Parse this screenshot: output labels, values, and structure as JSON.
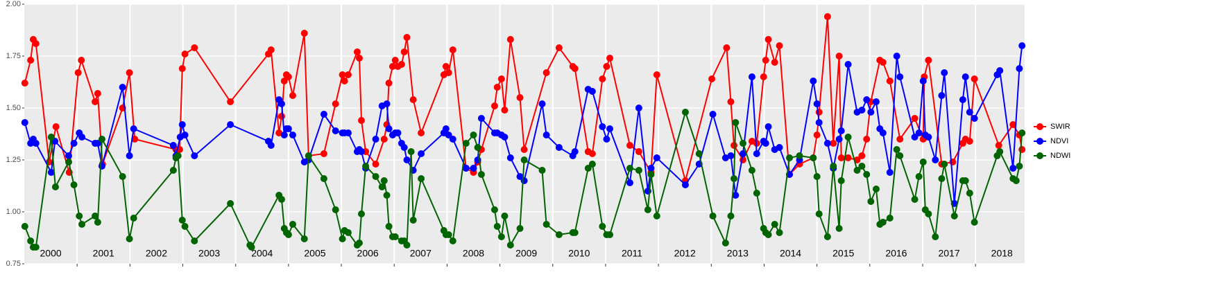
{
  "chart_data": {
    "type": "line",
    "ylim": [
      0.75,
      2.0
    ],
    "yticks": [
      {
        "value": 0.75,
        "label": "0.75"
      },
      {
        "value": 1.0,
        "label": "1.00"
      },
      {
        "value": 1.25,
        "label": "1.25"
      },
      {
        "value": 1.5,
        "label": "1.50"
      },
      {
        "value": 1.75,
        "label": "1.75"
      },
      {
        "value": 2.0,
        "label": "2.00"
      }
    ],
    "xlim": [
      2000,
      2018.93
    ],
    "xticks": [
      {
        "value": 2000.5,
        "label": "2000"
      },
      {
        "value": 2001.5,
        "label": "2001"
      },
      {
        "value": 2002.5,
        "label": "2002"
      },
      {
        "value": 2003.5,
        "label": "2003"
      },
      {
        "value": 2004.5,
        "label": "2004"
      },
      {
        "value": 2005.5,
        "label": "2005"
      },
      {
        "value": 2006.5,
        "label": "2006"
      },
      {
        "value": 2007.5,
        "label": "2007"
      },
      {
        "value": 2008.5,
        "label": "2008"
      },
      {
        "value": 2009.5,
        "label": "2009"
      },
      {
        "value": 2010.5,
        "label": "2010"
      },
      {
        "value": 2011.5,
        "label": "2011"
      },
      {
        "value": 2012.5,
        "label": "2012"
      },
      {
        "value": 2013.5,
        "label": "2013"
      },
      {
        "value": 2014.5,
        "label": "2014"
      },
      {
        "value": 2015.5,
        "label": "2015"
      },
      {
        "value": 2016.5,
        "label": "2016"
      },
      {
        "value": 2017.5,
        "label": "2017"
      },
      {
        "value": 2018.5,
        "label": "2018"
      }
    ],
    "xgrid": [
      2001,
      2002,
      2003,
      2004,
      2005,
      2006,
      2007,
      2008,
      2009,
      2010,
      2011,
      2012,
      2013,
      2014,
      2015,
      2016,
      2017,
      2018
    ],
    "grid": true,
    "legend": "right",
    "series": [
      {
        "name": "SWIR",
        "color": "#ff0000",
        "x": [
          2000.01,
          2000.12,
          2000.17,
          2000.22,
          2000.47,
          2000.6,
          2000.85,
          2001.02,
          2001.08,
          2001.34,
          2001.39,
          2001.48,
          2001.86,
          2001.99,
          2002.09,
          2002.87,
          2002.94,
          2002.99,
          2003.04,
          2003.22,
          2003.9,
          2004.62,
          2004.67,
          2004.82,
          2004.87,
          2004.92,
          2004.96,
          2005,
          2005.08,
          2005.3,
          2005.38,
          2005.67,
          2005.89,
          2006.02,
          2006.06,
          2006.13,
          2006.3,
          2006.34,
          2006.38,
          2006.46,
          2006.65,
          2006.81,
          2006.86,
          2006.9,
          2006.97,
          2007.02,
          2007.07,
          2007.14,
          2007.19,
          2007.24,
          2007.36,
          2007.51,
          2007.94,
          2007.98,
          2008.03,
          2008.11,
          2008.36,
          2008.5,
          2008.58,
          2008.65,
          2008.9,
          2008.95,
          2009.03,
          2009.09,
          2009.2,
          2009.38,
          2009.46,
          2009.88,
          2010.12,
          2010.38,
          2010.42,
          2010.67,
          2010.75,
          2010.94,
          2011.02,
          2011.08,
          2011.46,
          2011.63,
          2011.86,
          2011.97,
          2012.51,
          2013.01,
          2013.29,
          2013.37,
          2013.43,
          2013.6,
          2013.77,
          2013.86,
          2013.99,
          2014.03,
          2014.08,
          2014.2,
          2014.29,
          2014.48,
          2014.67,
          2014.93,
          2015,
          2015.04,
          2015.2,
          2015.31,
          2015.42,
          2015.46,
          2015.59,
          2015.76,
          2015.85,
          2015.94,
          2016.02,
          2016.19,
          2016.25,
          2016.38,
          2016.57,
          2016.85,
          2017.01,
          2017.03,
          2017.11,
          2017.36,
          2017.57,
          2017.76,
          2017.81,
          2017.89,
          2017.98,
          2018.44,
          2018.71,
          2018.83,
          2018.88
        ],
        "values": [
          1.62,
          1.73,
          1.83,
          1.81,
          1.24,
          1.41,
          1.19,
          1.67,
          1.73,
          1.53,
          1.57,
          1.23,
          1.5,
          1.67,
          1.35,
          1.3,
          1.3,
          1.69,
          1.76,
          1.79,
          1.53,
          1.76,
          1.78,
          1.38,
          1.46,
          1.63,
          1.66,
          1.65,
          1.56,
          1.86,
          1.27,
          1.28,
          1.52,
          1.66,
          1.63,
          1.66,
          1.77,
          1.74,
          1.44,
          1.29,
          1.23,
          1.35,
          1.42,
          1.62,
          1.7,
          1.73,
          1.7,
          1.71,
          1.77,
          1.84,
          1.54,
          1.38,
          1.66,
          1.7,
          1.67,
          1.78,
          1.21,
          1.19,
          1.24,
          1.3,
          1.51,
          1.6,
          1.64,
          1.49,
          1.83,
          1.55,
          1.3,
          1.67,
          1.79,
          1.7,
          1.69,
          1.29,
          1.28,
          1.64,
          1.7,
          1.74,
          1.32,
          1.29,
          1.19,
          1.66,
          1.15,
          1.64,
          1.79,
          1.53,
          1.32,
          1.25,
          1.34,
          1.33,
          1.65,
          1.73,
          1.83,
          1.72,
          1.8,
          1.18,
          1.23,
          1.26,
          1.37,
          1.48,
          1.94,
          1.33,
          1.75,
          1.26,
          1.26,
          1.25,
          1.27,
          1.35,
          1.53,
          1.73,
          1.72,
          1.63,
          1.35,
          1.45,
          1.35,
          1.65,
          1.73,
          1.23,
          1.24,
          1.33,
          1.35,
          1.34,
          1.64,
          1.32,
          1.42,
          1.37,
          1.3
        ]
      },
      {
        "name": "NDVI",
        "color": "#0000ff",
        "x": [
          2000.01,
          2000.12,
          2000.17,
          2000.22,
          2000.51,
          2000.58,
          2000.84,
          2000.94,
          2001.04,
          2001.09,
          2001.34,
          2001.39,
          2001.47,
          2001.86,
          2001.99,
          2002.07,
          2002.82,
          2002.87,
          2002.95,
          2002.99,
          2003.04,
          2003.22,
          2003.9,
          2004.62,
          2004.67,
          2004.82,
          2004.87,
          2004.92,
          2004.96,
          2005,
          2005.08,
          2005.3,
          2005.38,
          2005.67,
          2005.89,
          2006.02,
          2006.06,
          2006.13,
          2006.3,
          2006.34,
          2006.38,
          2006.46,
          2006.65,
          2006.77,
          2006.86,
          2006.9,
          2006.97,
          2007.02,
          2007.07,
          2007.14,
          2007.19,
          2007.24,
          2007.36,
          2007.51,
          2007.94,
          2007.98,
          2008.03,
          2008.11,
          2008.36,
          2008.5,
          2008.58,
          2008.65,
          2008.9,
          2008.95,
          2009.03,
          2009.09,
          2009.2,
          2009.38,
          2009.46,
          2009.8,
          2009.88,
          2010.12,
          2010.38,
          2010.42,
          2010.67,
          2010.75,
          2010.94,
          2011.02,
          2011.08,
          2011.46,
          2011.63,
          2011.8,
          2011.86,
          2011.97,
          2012.51,
          2012.77,
          2013.03,
          2013.27,
          2013.37,
          2013.46,
          2013.6,
          2013.77,
          2013.86,
          2013.99,
          2014.03,
          2014.08,
          2014.2,
          2014.29,
          2014.48,
          2014.67,
          2014.93,
          2015,
          2015.04,
          2015.2,
          2015.31,
          2015.42,
          2015.46,
          2015.59,
          2015.76,
          2015.85,
          2015.94,
          2016.02,
          2016.12,
          2016.19,
          2016.25,
          2016.38,
          2016.51,
          2016.57,
          2016.85,
          2016.93,
          2017.01,
          2017.05,
          2017.11,
          2017.24,
          2017.36,
          2017.41,
          2017.6,
          2017.76,
          2017.81,
          2017.89,
          2017.98,
          2018.41,
          2018.46,
          2018.71,
          2018.83,
          2018.88
        ],
        "values": [
          1.43,
          1.33,
          1.35,
          1.33,
          1.19,
          1.34,
          1.27,
          1.33,
          1.38,
          1.36,
          1.33,
          1.33,
          1.22,
          1.6,
          1.27,
          1.4,
          1.32,
          1.27,
          1.36,
          1.42,
          1.37,
          1.27,
          1.42,
          1.34,
          1.32,
          1.54,
          1.52,
          1.37,
          1.4,
          1.4,
          1.37,
          1.24,
          1.25,
          1.47,
          1.39,
          1.38,
          1.38,
          1.38,
          1.29,
          1.3,
          1.29,
          1.21,
          1.35,
          1.51,
          1.52,
          1.4,
          1.37,
          1.38,
          1.38,
          1.33,
          1.31,
          1.25,
          1.2,
          1.28,
          1.38,
          1.4,
          1.37,
          1.35,
          1.21,
          1.21,
          1.25,
          1.45,
          1.38,
          1.38,
          1.37,
          1.36,
          1.26,
          1.17,
          1.15,
          1.52,
          1.37,
          1.31,
          1.27,
          1.29,
          1.59,
          1.58,
          1.41,
          1.35,
          1.4,
          1.14,
          1.5,
          1.1,
          1.21,
          1.26,
          1.13,
          1.23,
          1.47,
          1.26,
          1.27,
          1.08,
          1.28,
          1.65,
          1.28,
          1.34,
          1.33,
          1.41,
          1.3,
          1.31,
          1.18,
          1.25,
          1.63,
          1.52,
          1.43,
          1.33,
          1.21,
          1.35,
          1.39,
          1.71,
          1.48,
          1.49,
          1.54,
          1.48,
          1.53,
          1.4,
          1.38,
          1.19,
          1.75,
          1.65,
          1.36,
          1.38,
          1.63,
          1.37,
          1.36,
          1.25,
          1.56,
          1.67,
          1.04,
          1.54,
          1.65,
          1.48,
          1.45,
          1.66,
          1.68,
          1.21,
          1.69,
          1.8
        ]
      },
      {
        "name": "NDWI",
        "color": "#006400",
        "x": [
          2000.01,
          2000.12,
          2000.17,
          2000.22,
          2000.51,
          2000.59,
          2000.84,
          2000.94,
          2001.04,
          2001.09,
          2001.34,
          2001.39,
          2001.47,
          2001.86,
          2001.99,
          2002.07,
          2002.82,
          2002.87,
          2002.91,
          2002.99,
          2003.04,
          2003.22,
          2003.9,
          2004.27,
          2004.3,
          2004.82,
          2004.87,
          2004.92,
          2004.96,
          2005,
          2005.08,
          2005.3,
          2005.38,
          2005.67,
          2005.89,
          2006.02,
          2006.06,
          2006.13,
          2006.3,
          2006.34,
          2006.38,
          2006.46,
          2006.65,
          2006.77,
          2006.81,
          2006.86,
          2006.9,
          2006.97,
          2007.02,
          2007.14,
          2007.19,
          2007.24,
          2007.32,
          2007.36,
          2007.51,
          2007.94,
          2007.98,
          2008.03,
          2008.11,
          2008.36,
          2008.5,
          2008.58,
          2008.65,
          2008.9,
          2008.95,
          2009.03,
          2009.09,
          2009.2,
          2009.38,
          2009.46,
          2009.8,
          2009.88,
          2010.12,
          2010.38,
          2010.42,
          2010.67,
          2010.75,
          2010.94,
          2011.02,
          2011.08,
          2011.46,
          2011.63,
          2011.8,
          2011.86,
          2011.97,
          2012.51,
          2012.77,
          2013.03,
          2013.27,
          2013.37,
          2013.43,
          2013.46,
          2013.6,
          2013.77,
          2013.86,
          2013.99,
          2014.03,
          2014.08,
          2014.2,
          2014.29,
          2014.48,
          2014.67,
          2014.93,
          2015,
          2015.04,
          2015.2,
          2015.31,
          2015.42,
          2015.46,
          2015.59,
          2015.76,
          2015.85,
          2015.94,
          2016.02,
          2016.12,
          2016.19,
          2016.25,
          2016.38,
          2016.51,
          2016.57,
          2016.85,
          2016.93,
          2017.01,
          2017.05,
          2017.11,
          2017.24,
          2017.36,
          2017.41,
          2017.6,
          2017.76,
          2017.81,
          2017.89,
          2017.98,
          2018.41,
          2018.46,
          2018.71,
          2018.77,
          2018.83,
          2018.88
        ],
        "values": [
          0.93,
          0.86,
          0.83,
          0.83,
          1.36,
          1.12,
          1.24,
          1.13,
          0.98,
          0.94,
          0.98,
          0.95,
          1.35,
          1.17,
          0.87,
          0.97,
          1.2,
          1.26,
          1.27,
          0.96,
          0.93,
          0.86,
          1.04,
          0.84,
          0.83,
          1.08,
          1.06,
          0.92,
          0.9,
          0.89,
          0.94,
          0.87,
          1.27,
          1.16,
          1.01,
          0.87,
          0.91,
          0.9,
          0.84,
          0.85,
          0.99,
          1.22,
          1.17,
          1.12,
          1.15,
          1.08,
          0.93,
          0.88,
          0.88,
          0.86,
          0.86,
          0.84,
          1.29,
          0.96,
          1.16,
          0.91,
          0.89,
          0.89,
          0.86,
          1.33,
          1.37,
          1.31,
          1.18,
          1.01,
          0.93,
          0.88,
          0.98,
          0.84,
          0.92,
          1.25,
          1.2,
          0.94,
          0.89,
          0.9,
          0.9,
          1.21,
          1.23,
          0.93,
          0.89,
          0.89,
          1.21,
          1.2,
          1.01,
          1.18,
          0.98,
          1.48,
          1.28,
          0.98,
          0.85,
          0.98,
          1.16,
          1.43,
          1.33,
          1.2,
          1.09,
          0.92,
          0.9,
          0.89,
          0.94,
          0.9,
          1.26,
          1.27,
          1.26,
          1.17,
          0.99,
          0.88,
          1.22,
          0.92,
          1.15,
          1.36,
          1.2,
          1.22,
          1.18,
          1.05,
          1.11,
          0.94,
          0.95,
          0.97,
          1.3,
          1.27,
          1.06,
          1.17,
          1.24,
          1.01,
          0.99,
          0.88,
          1.16,
          1.23,
          0.98,
          1.15,
          1.15,
          1.09,
          0.95,
          1.27,
          1.29,
          1.16,
          1.15,
          1.22,
          1.38
        ]
      }
    ]
  }
}
